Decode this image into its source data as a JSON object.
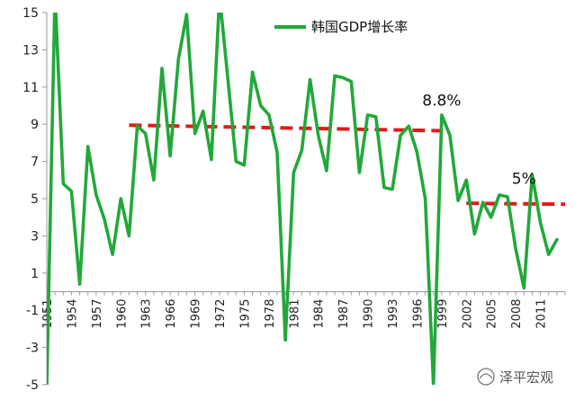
{
  "chart_data": {
    "type": "line",
    "title": "",
    "xlabel": "",
    "ylabel": "",
    "ylim": [
      -5,
      15
    ],
    "yticks": [
      -5,
      -3,
      -1,
      1,
      3,
      5,
      7,
      9,
      11,
      13,
      15
    ],
    "xlim": [
      1951,
      2014
    ],
    "x_tick_labels": [
      "1951",
      "1954",
      "1957",
      "1960",
      "1963",
      "1966",
      "1969",
      "1972",
      "1975",
      "1978",
      "1981",
      "1984",
      "1987",
      "1990",
      "1993",
      "1996",
      "1999",
      "2002",
      "2005",
      "2008",
      "2011"
    ],
    "grid": false,
    "legend_position": "top-center",
    "series": [
      {
        "name": "韩国GDP增长率",
        "color": "#22a83a",
        "x": [
          1951,
          1952,
          1953,
          1954,
          1955,
          1956,
          1957,
          1958,
          1959,
          1960,
          1961,
          1962,
          1963,
          1964,
          1965,
          1966,
          1967,
          1968,
          1969,
          1970,
          1971,
          1972,
          1973,
          1974,
          1975,
          1976,
          1977,
          1978,
          1979,
          1980,
          1981,
          1982,
          1983,
          1984,
          1985,
          1986,
          1987,
          1988,
          1989,
          1990,
          1991,
          1992,
          1993,
          1994,
          1995,
          1996,
          1997,
          1998,
          1999,
          2000,
          2001,
          2002,
          2003,
          2004,
          2005,
          2006,
          2007,
          2008,
          2009,
          2010,
          2011,
          2012,
          2013
        ],
        "values": [
          -5.0,
          16.0,
          5.8,
          5.4,
          0.4,
          7.8,
          5.2,
          3.9,
          2.0,
          5.0,
          3.0,
          8.9,
          8.5,
          6.0,
          12.0,
          7.3,
          12.5,
          14.9,
          8.5,
          9.7,
          7.1,
          15.9,
          11.5,
          7.0,
          6.8,
          11.8,
          10.0,
          9.5,
          7.5,
          -2.6,
          6.4,
          7.6,
          11.4,
          8.4,
          6.5,
          11.6,
          11.5,
          11.3,
          6.4,
          9.5,
          9.4,
          5.6,
          5.5,
          8.4,
          8.9,
          7.5,
          5.0,
          -5.0,
          9.5,
          8.4,
          4.9,
          6.0,
          3.1,
          4.8,
          4.0,
          5.2,
          5.1,
          2.3,
          0.2,
          6.3,
          3.7,
          2.0,
          2.8
        ]
      }
    ],
    "trend_lines": [
      {
        "from": [
          1961,
          8.95
        ],
        "to": [
          1999,
          8.65
        ],
        "color": "#e01b1b"
      },
      {
        "from": [
          2002,
          4.75
        ],
        "to": [
          2014,
          4.7
        ],
        "color": "#e01b1b"
      }
    ],
    "annotations": [
      {
        "text": "8.8%",
        "x": 1999,
        "y": 10.0
      },
      {
        "text": "5%",
        "x": 2009,
        "y": 5.8
      }
    ]
  },
  "watermark": {
    "text": "泽平宏观",
    "icon": "wechat-shell-icon"
  }
}
